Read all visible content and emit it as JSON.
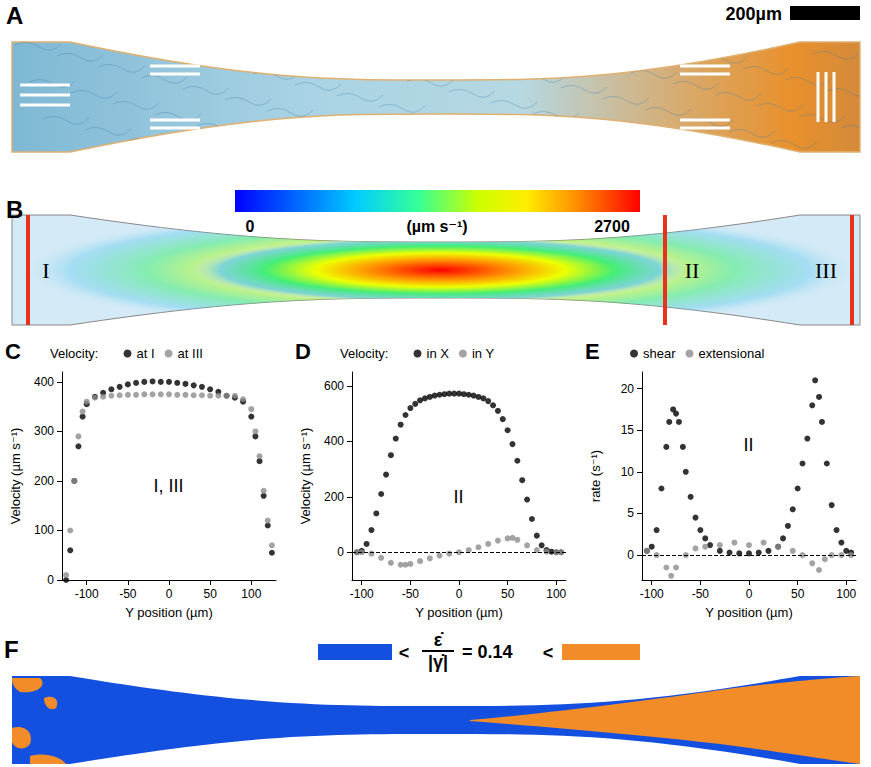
{
  "panels": {
    "A": {
      "letter": "A",
      "scale_bar": "200µm"
    },
    "B": {
      "letter": "B",
      "colorbar": {
        "range": [
          0,
          2700
        ],
        "label": "(µm s⁻¹)"
      },
      "sections": [
        "I",
        "II",
        "III"
      ]
    },
    "F": {
      "letter": "F",
      "left_sign": "<",
      "numerator": "ε̇",
      "denominator": "|γ̇|",
      "relation": "=",
      "threshold": 0.14,
      "right_sign": "<",
      "colors": [
        "#1450e0",
        "#f28c28"
      ]
    }
  },
  "chart_data": [
    {
      "type": "scatter",
      "letter": "C",
      "legend_title": "Velocity:",
      "annotation": "I, III",
      "legend": "top",
      "grid": false,
      "marker": "circle",
      "xlabel": "Y position (µm)",
      "ylabel": "Velocity (µm s⁻¹)",
      "xlim": [
        -130,
        130
      ],
      "xticks": [
        -100,
        -50,
        0,
        50,
        100
      ],
      "ylim": [
        0,
        420
      ],
      "yticks": [
        0,
        100,
        200,
        300,
        400
      ],
      "series": [
        {
          "name": "at I",
          "color": "#000000",
          "x": [
            -125,
            -120,
            -115,
            -110,
            -105,
            -100,
            -90,
            -80,
            -70,
            -60,
            -50,
            -40,
            -30,
            -20,
            -10,
            0,
            10,
            20,
            30,
            40,
            50,
            60,
            70,
            80,
            90,
            100,
            105,
            110,
            115,
            120,
            125
          ],
          "values": [
            0,
            60,
            200,
            270,
            330,
            355,
            370,
            378,
            385,
            390,
            395,
            398,
            400,
            401,
            400,
            400,
            398,
            396,
            393,
            390,
            385,
            380,
            372,
            368,
            360,
            330,
            290,
            240,
            170,
            110,
            55
          ]
        },
        {
          "name": "at III",
          "color": "#8c8c8c",
          "x": [
            -125,
            -120,
            -115,
            -110,
            -105,
            -100,
            -90,
            -80,
            -70,
            -60,
            -50,
            -40,
            -30,
            -20,
            -10,
            0,
            10,
            20,
            30,
            40,
            50,
            60,
            70,
            80,
            90,
            100,
            105,
            110,
            115,
            120,
            125
          ],
          "values": [
            10,
            100,
            200,
            290,
            340,
            360,
            368,
            370,
            372,
            373,
            374,
            374,
            375,
            375,
            375,
            375,
            374,
            374,
            373,
            373,
            372,
            372,
            372,
            372,
            365,
            345,
            300,
            250,
            180,
            120,
            70
          ]
        }
      ]
    },
    {
      "type": "scatter",
      "letter": "D",
      "legend_title": "Velocity:",
      "annotation": "II",
      "legend": "top",
      "grid": false,
      "marker": "circle",
      "hline": 0,
      "xlabel": "Y position (µm)",
      "ylabel": "Velocity (µm s⁻¹)",
      "xlim": [
        -110,
        110
      ],
      "xticks": [
        -100,
        -50,
        0,
        50,
        100
      ],
      "ylim": [
        -100,
        650
      ],
      "yticks": [
        0,
        200,
        400,
        600
      ],
      "series": [
        {
          "name": "in X",
          "color": "#000000",
          "x": [
            -105,
            -100,
            -95,
            -90,
            -85,
            -80,
            -75,
            -70,
            -65,
            -60,
            -55,
            -50,
            -45,
            -40,
            -35,
            -30,
            -25,
            -20,
            -15,
            -10,
            -5,
            0,
            5,
            10,
            15,
            20,
            25,
            30,
            35,
            40,
            45,
            50,
            55,
            60,
            65,
            70,
            75,
            80,
            85,
            90,
            95,
            100,
            105
          ],
          "values": [
            0,
            5,
            30,
            80,
            140,
            210,
            280,
            350,
            410,
            460,
            495,
            520,
            535,
            548,
            555,
            560,
            565,
            568,
            570,
            572,
            572,
            572,
            570,
            568,
            565,
            560,
            555,
            545,
            530,
            510,
            480,
            440,
            390,
            330,
            260,
            190,
            120,
            60,
            25,
            8,
            2,
            0,
            0
          ]
        },
        {
          "name": "in Y",
          "color": "#8c8c8c",
          "x": [
            -105,
            -100,
            -90,
            -80,
            -70,
            -60,
            -55,
            -50,
            -40,
            -30,
            -20,
            -10,
            0,
            10,
            20,
            30,
            40,
            50,
            55,
            60,
            70,
            80,
            90,
            100,
            105
          ],
          "values": [
            0,
            0,
            -5,
            -20,
            -38,
            -45,
            -45,
            -42,
            -32,
            -22,
            -12,
            -5,
            0,
            8,
            18,
            30,
            42,
            50,
            52,
            45,
            25,
            8,
            2,
            0,
            0
          ]
        }
      ]
    },
    {
      "type": "scatter",
      "letter": "E",
      "annotation": "II",
      "legend": "top",
      "grid": false,
      "marker": "circle",
      "hline": 0,
      "xlabel": "Y position (µm)",
      "ylabel": "rate (s⁻¹)",
      "xlim": [
        -110,
        110
      ],
      "xticks": [
        -100,
        -50,
        0,
        50,
        100
      ],
      "ylim": [
        -3,
        22
      ],
      "yticks": [
        0,
        5,
        10,
        15,
        20
      ],
      "series": [
        {
          "name": "shear",
          "color": "#000000",
          "x": [
            -105,
            -100,
            -95,
            -90,
            -85,
            -82,
            -78,
            -75,
            -72,
            -68,
            -65,
            -60,
            -55,
            -50,
            -45,
            -40,
            -30,
            -20,
            -10,
            0,
            10,
            20,
            30,
            35,
            40,
            45,
            50,
            55,
            60,
            65,
            68,
            72,
            75,
            80,
            85,
            90,
            95,
            100,
            105
          ],
          "values": [
            0.5,
            1,
            3,
            8,
            13,
            16,
            17.5,
            17,
            16,
            13,
            10,
            7,
            4.5,
            3,
            2,
            1.2,
            0.5,
            0.3,
            0.2,
            0.2,
            0.3,
            0.5,
            1,
            2,
            3.5,
            5.5,
            8,
            11,
            14,
            18,
            21,
            19,
            16,
            11,
            6,
            3,
            1.5,
            0.5,
            0.3
          ]
        },
        {
          "name": "extensional",
          "color": "#8c8c8c",
          "x": [
            -105,
            -95,
            -85,
            -80,
            -75,
            -65,
            -55,
            -45,
            -30,
            -15,
            0,
            15,
            30,
            45,
            55,
            65,
            72,
            78,
            85,
            95,
            105
          ],
          "values": [
            0.5,
            0,
            -1.5,
            -2.5,
            -1.5,
            0,
            0.8,
            1,
            1.2,
            1.5,
            1.2,
            1.5,
            1,
            0.5,
            0,
            -1,
            -1.8,
            -0.5,
            0,
            0,
            0
          ]
        }
      ]
    }
  ]
}
